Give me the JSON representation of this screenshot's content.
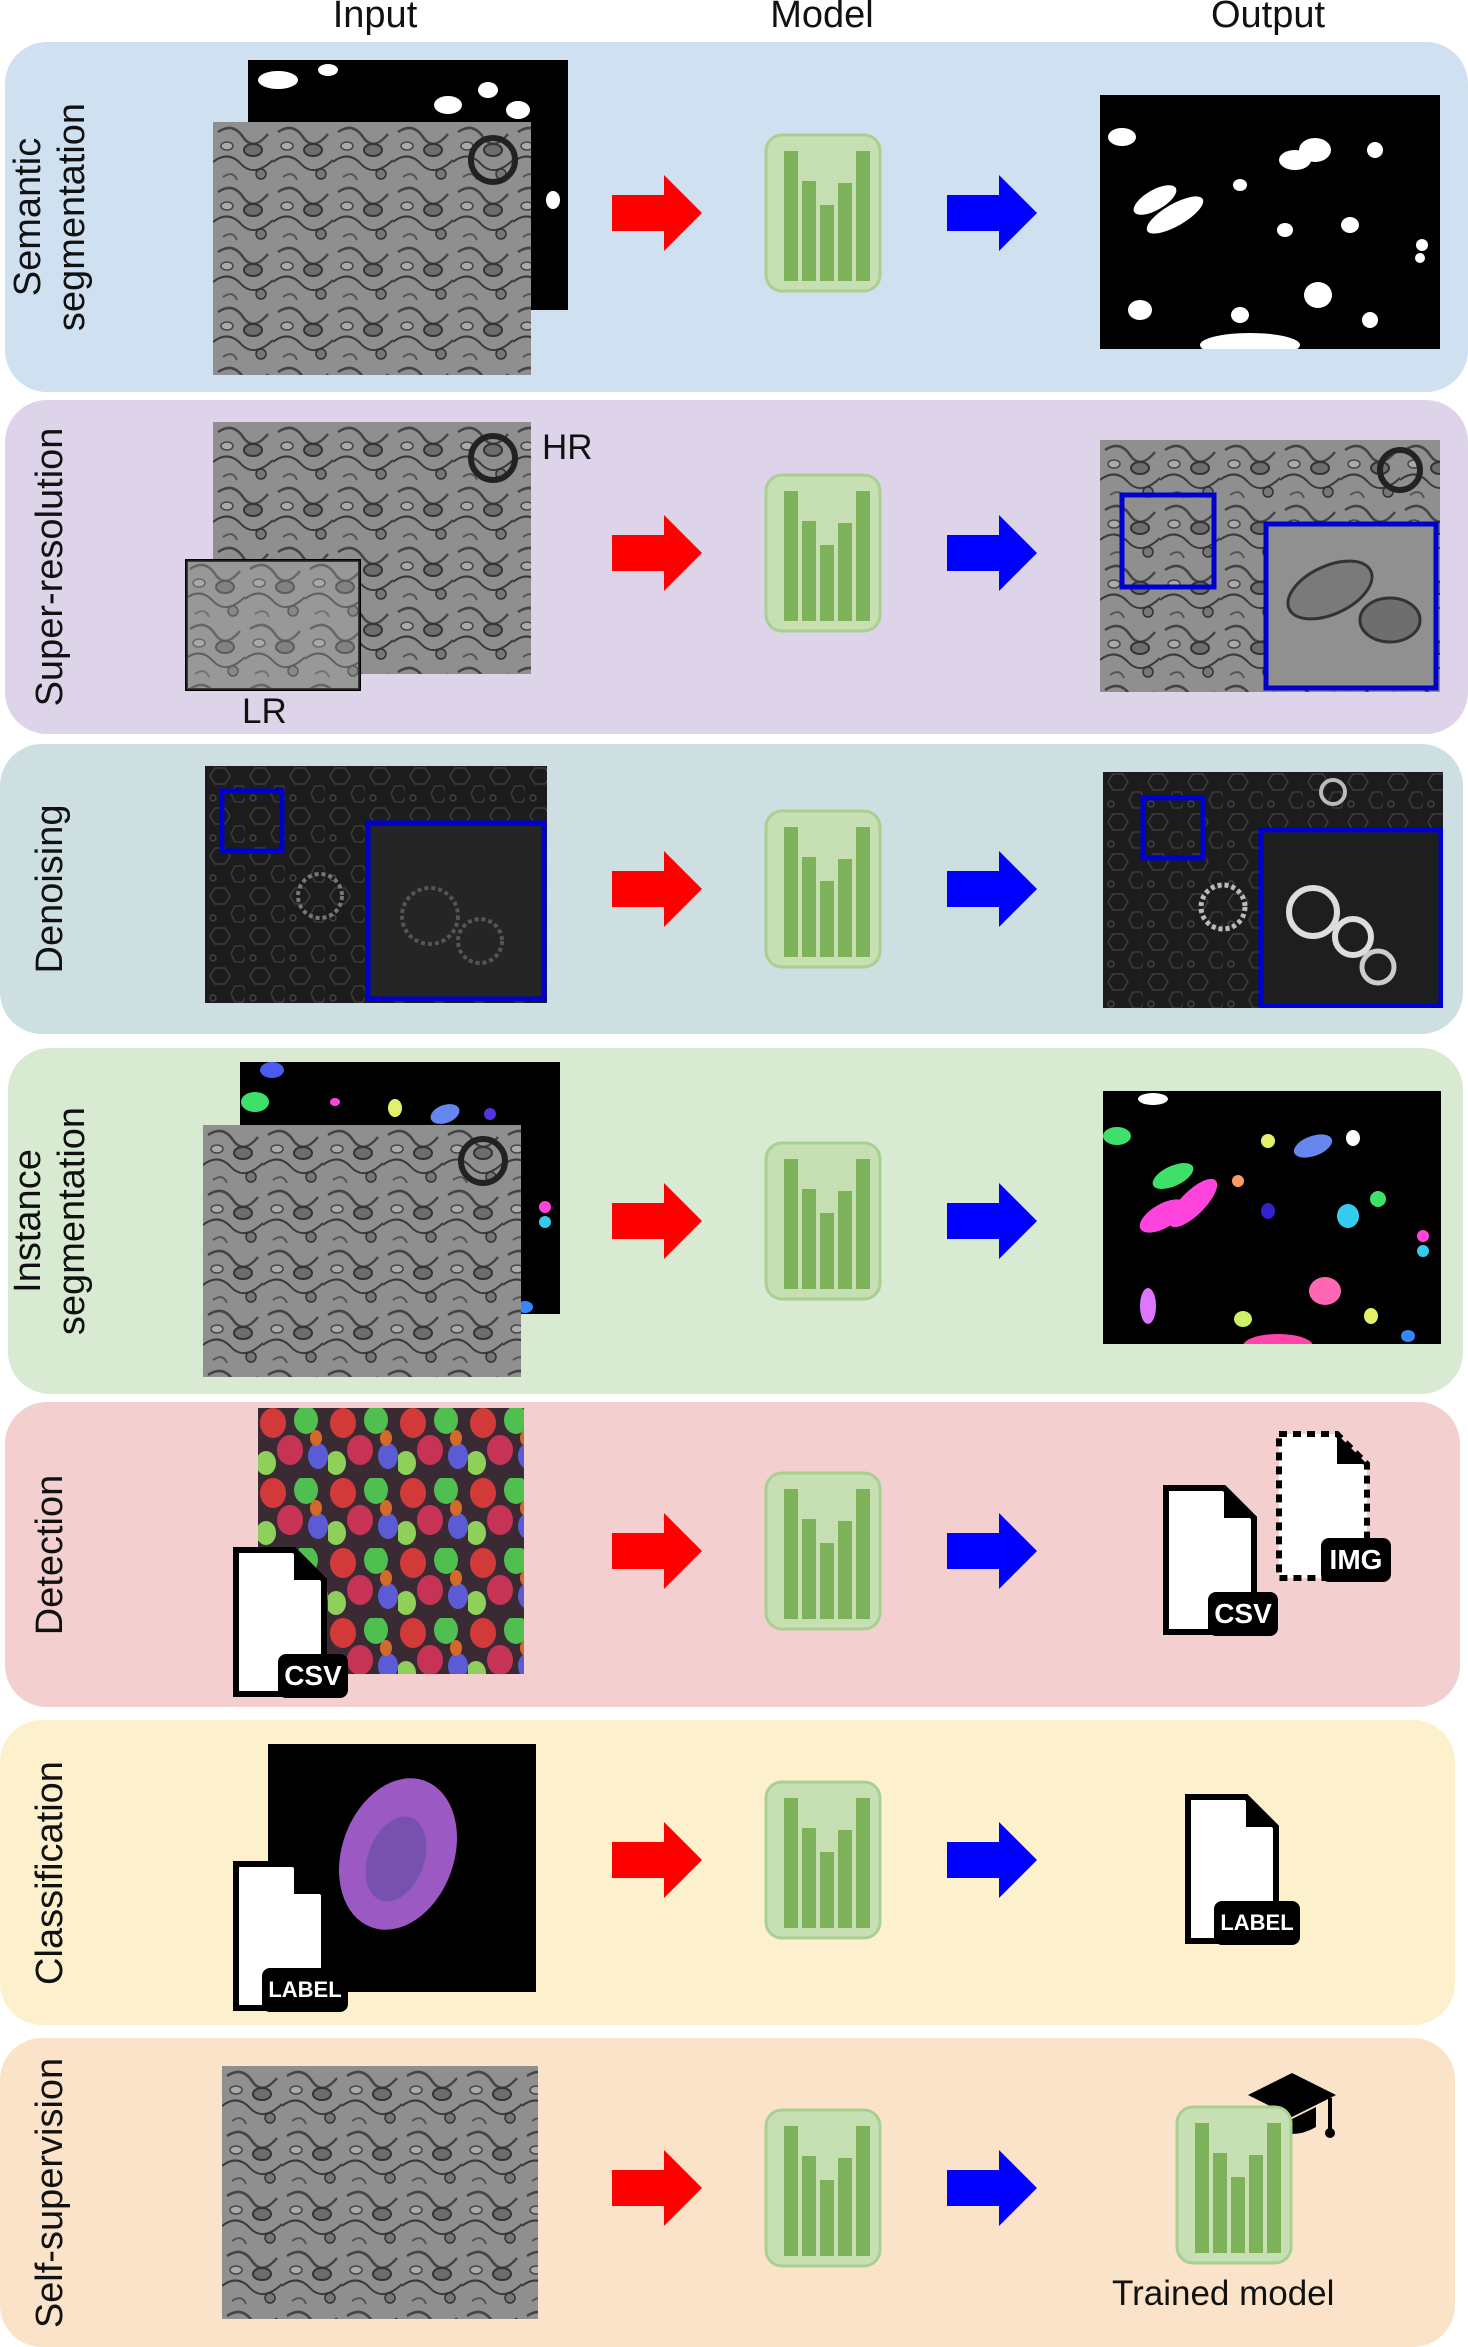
{
  "headers": {
    "input": "Input",
    "model": "Model",
    "output": "Output"
  },
  "rows": [
    {
      "label": "Semantic\nsegmentation",
      "bg": "#cfe0f1"
    },
    {
      "label": "Super-resolution",
      "bg": "#ddd4ea"
    },
    {
      "label": "Denoising",
      "bg": "#cddfe0"
    },
    {
      "label": "Instance\nsegmentation",
      "bg": "#d9ead3"
    },
    {
      "label": "Detection",
      "bg": "#f3cfcf"
    },
    {
      "label": "Classification",
      "bg": "#fdf0cd"
    },
    {
      "label": "Self-supervision",
      "bg": "#fbe3c9"
    }
  ],
  "annotations": {
    "hr": "HR",
    "lr": "LR",
    "trained_model": "Trained model"
  },
  "file_tags": {
    "csv": "CSV",
    "img": "IMG",
    "label": "LABEL"
  },
  "colors": {
    "input_arrow": "#ff0000",
    "output_arrow": "#0000ff",
    "model_fill": "#c6e0b4",
    "model_bars": "#7db25b",
    "zoom_box": "#0000cc"
  }
}
